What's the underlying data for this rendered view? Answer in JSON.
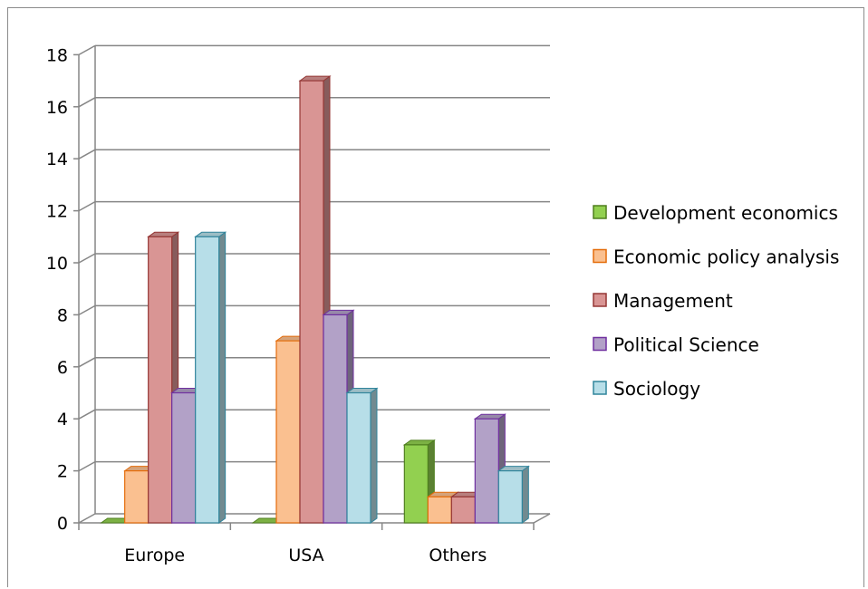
{
  "chart_data": {
    "type": "bar",
    "style": "3d-clustered-column",
    "categories": [
      "Europe",
      "USA",
      "Others"
    ],
    "series": [
      {
        "name": "Development economics",
        "values": [
          0,
          0,
          3
        ],
        "color": "#92d050",
        "edge": "#4f7f1f"
      },
      {
        "name": "Economic policy analysis",
        "values": [
          2,
          7,
          1
        ],
        "color": "#fac090",
        "edge": "#e46c0a"
      },
      {
        "name": "Management",
        "values": [
          11,
          17,
          1
        ],
        "color": "#d99594",
        "edge": "#953735"
      },
      {
        "name": "Political Science",
        "values": [
          5,
          8,
          4
        ],
        "color": "#b2a1c7",
        "edge": "#7030a0"
      },
      {
        "name": "Sociology",
        "values": [
          11,
          5,
          2
        ],
        "color": "#b7dee8",
        "edge": "#31859c"
      }
    ],
    "yticks": [
      "0",
      "2",
      "4",
      "6",
      "8",
      "10",
      "12",
      "14",
      "16",
      "18"
    ],
    "ylim": [
      0,
      18
    ],
    "grid": true,
    "legend_position": "right",
    "title": "",
    "xlabel": "",
    "ylabel": ""
  }
}
